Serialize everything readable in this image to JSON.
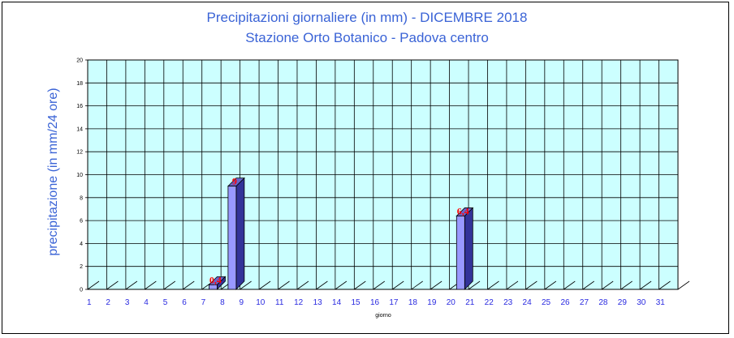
{
  "chart_data": {
    "type": "bar",
    "title": "Precipitazioni giornaliere (in mm) - DICEMBRE 2018",
    "subtitle": "Stazione Orto Botanico - Padova centro",
    "xlabel": "giorno",
    "ylabel": "precipitazione (in mm/24 ore)",
    "ylim": [
      0,
      20
    ],
    "yticks": [
      "0",
      "2",
      "4",
      "6",
      "8",
      "10",
      "12",
      "14",
      "16",
      "18",
      "20"
    ],
    "categories": [
      "1",
      "2",
      "3",
      "4",
      "5",
      "6",
      "7",
      "8",
      "9",
      "10",
      "11",
      "12",
      "13",
      "14",
      "15",
      "16",
      "17",
      "18",
      "19",
      "20",
      "21",
      "22",
      "23",
      "24",
      "25",
      "26",
      "27",
      "28",
      "29",
      "30",
      "31"
    ],
    "values": [
      0,
      0,
      0,
      0,
      0,
      0,
      0.4,
      9,
      0,
      0,
      0,
      0,
      0,
      0,
      0,
      0,
      0,
      0,
      0,
      6.4,
      0,
      0,
      0,
      0,
      0,
      0,
      0,
      0,
      0,
      0,
      0
    ],
    "data_labels": [
      {
        "day": "7",
        "text": "0,4"
      },
      {
        "day": "8",
        "text": "9"
      },
      {
        "day": "20",
        "text": "6,4"
      }
    ],
    "grid": true,
    "colors": {
      "plot_bg": "#ccffff",
      "bar_front": "#9999ff",
      "bar_side": "#333399",
      "bar_top": "#6666cc",
      "title": "#3a63d6",
      "data_label": "#ff0000",
      "x_tick": "#2a2ae0"
    }
  }
}
